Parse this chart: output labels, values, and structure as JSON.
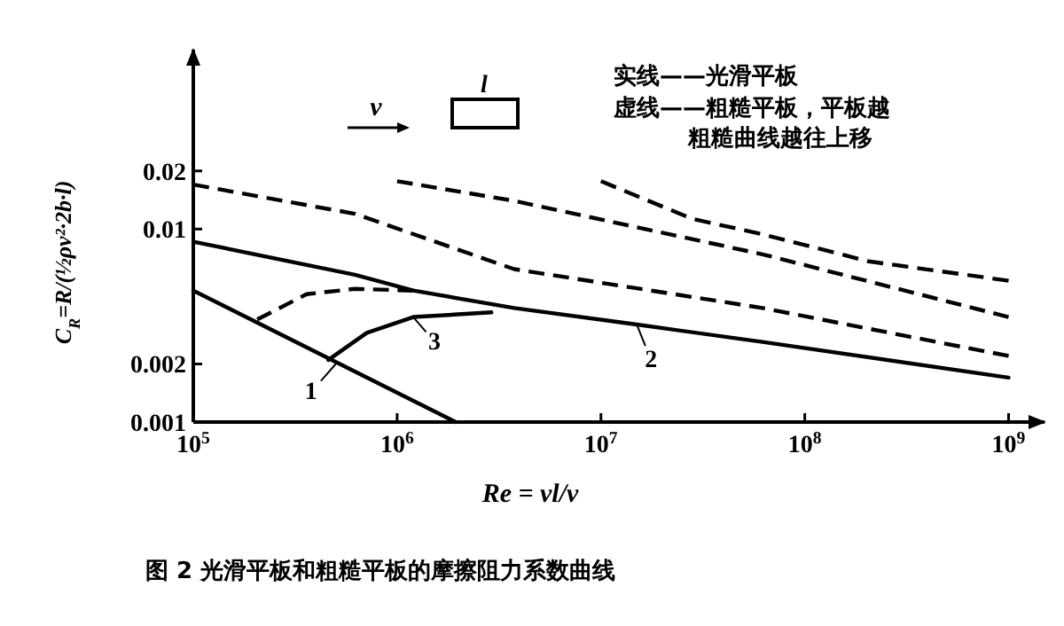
{
  "chart_data": {
    "type": "line",
    "title": "图 2  光滑平板和粗糙平板的摩擦阻力系数曲线",
    "xlabel": "Re = vl/ν",
    "ylabel": "C$_{R}$=R/(½ρv²·2b·l)",
    "log": "xy",
    "xlim": [
      100000,
      1500000000
    ],
    "ylim": [
      0.001,
      0.085
    ],
    "xticks": [
      {
        "value": 100000,
        "label": "10$^{5}$"
      },
      {
        "value": 1000000,
        "label": "10$^{6}$"
      },
      {
        "value": 10000000,
        "label": "10$^{7}$"
      },
      {
        "value": 100000000,
        "label": "10$^{8}$"
      },
      {
        "value": 1000000000,
        "label": "10$^{9}$"
      }
    ],
    "yticks": [
      0.001,
      0.002,
      0.01,
      0.02
    ],
    "color": "#000000",
    "series": [
      {
        "line_style": "solid",
        "x": [
          100000,
          1940000
        ],
        "values": [
          0.0048,
          0.001
        ]
      },
      {
        "line_style": "solid",
        "x": [
          100000,
          620000,
          1200000,
          3750000,
          15000000,
          62000000,
          1000000000
        ],
        "values": [
          0.0086,
          0.0058,
          0.0048,
          0.0039,
          0.0032,
          0.0026,
          0.0017
        ]
      },
      {
        "line_style": "solid",
        "x": [
          460000,
          710000,
          1200000,
          2900000
        ],
        "values": [
          0.0021,
          0.0029,
          0.0035,
          0.0037
        ]
      },
      {
        "line_style": "dashed",
        "x": [
          206000,
          360000,
          620000,
          1200000
        ],
        "values": [
          0.0034,
          0.0046,
          0.0049,
          0.0048
        ]
      },
      {
        "line_style": "dashed",
        "x": [
          100000,
          620000,
          3750000,
          62000000,
          1000000000
        ],
        "values": [
          0.017,
          0.012,
          0.0062,
          0.0039,
          0.0022
        ]
      },
      {
        "line_style": "dashed",
        "x": [
          1000000,
          3750000,
          62000000,
          1000000000
        ],
        "values": [
          0.0177,
          0.014,
          0.0074,
          0.0035
        ]
      },
      {
        "line_style": "dashed",
        "x": [
          10000000,
          28000000,
          62000000,
          206000000,
          1000000000
        ],
        "values": [
          0.0177,
          0.0113,
          0.0094,
          0.0068,
          0.0054
        ]
      }
    ],
    "annotations": [
      "v",
      "l",
      "实线——光滑平板",
      "虚线——粗糙平板，平板越",
      "粗糙曲线越往上移",
      {
        "text": "1",
        "x": 500000,
        "y": 0.002
      },
      {
        "text": "3",
        "x": 1200000,
        "y": 0.0035
      },
      {
        "text": "2",
        "x": 15000000,
        "y": 0.0032
      }
    ]
  }
}
